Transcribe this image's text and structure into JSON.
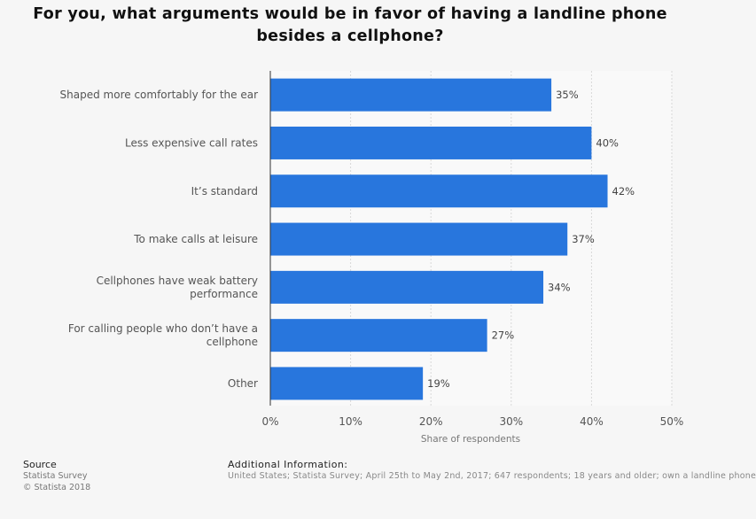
{
  "chart_data": {
    "type": "bar",
    "orientation": "horizontal",
    "title": "For you, what arguments would be in favor of having a landline phone\nbesides a cellphone?",
    "categories": [
      "Shaped more comfortably for the ear",
      "Less expensive call rates",
      "It’s standard",
      "To make calls at leisure",
      "Cellphones have weak battery\nperformance",
      "For calling people who don’t have a\ncellphone",
      "Other"
    ],
    "values": [
      35,
      40,
      42,
      37,
      34,
      27,
      19
    ],
    "data_labels": [
      "35%",
      "40%",
      "42%",
      "37%",
      "34%",
      "27%",
      "19%"
    ],
    "xlabel": "Share of respondents",
    "ylabel": "",
    "xlim": [
      0,
      50
    ],
    "xticks": [
      0,
      10,
      20,
      30,
      40,
      50
    ],
    "xtick_labels": [
      "0%",
      "10%",
      "20%",
      "30%",
      "40%",
      "50%"
    ],
    "grid": true,
    "bar_color": "#2876dd"
  },
  "footer": {
    "source_heading": "Source",
    "source_line1": "Statista Survey",
    "source_line2": "© Statista 2018",
    "info_heading": "Additional Information:",
    "info_text": "United States; Statista Survey; April 25th to May 2nd, 2017; 647 respondents; 18 years and older; own a landline phone"
  }
}
